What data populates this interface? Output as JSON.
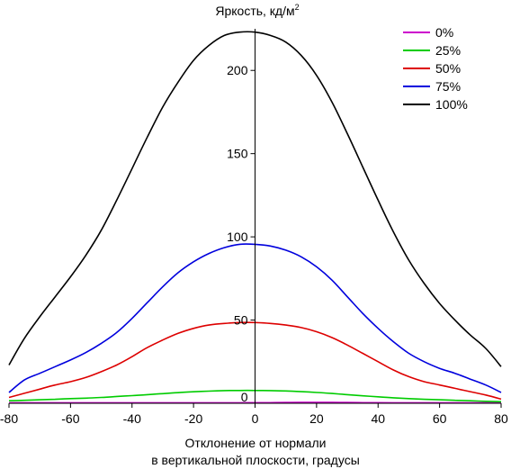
{
  "chart_data": {
    "type": "line",
    "ylabel": "Яркость, кд/м",
    "ylabel_sup": "2",
    "xlabel_line1": "Отклонение от нормали",
    "xlabel_line2": "в вертикальной плоскости, градусы",
    "xlim": [
      -80,
      80
    ],
    "ylim": [
      0,
      225
    ],
    "xticks": [
      -80,
      -60,
      -40,
      -20,
      0,
      20,
      40,
      60,
      80
    ],
    "yticks": [
      0,
      50,
      100,
      150,
      200
    ],
    "legend_position": "top-right",
    "grid": false,
    "x": [
      -80,
      -75,
      -70,
      -65,
      -60,
      -55,
      -50,
      -45,
      -40,
      -35,
      -30,
      -25,
      -20,
      -15,
      -10,
      -5,
      0,
      5,
      10,
      15,
      20,
      25,
      30,
      35,
      40,
      45,
      50,
      55,
      60,
      65,
      70,
      75,
      80
    ],
    "series": [
      {
        "name": "0%",
        "color": "#cc00cc",
        "values": [
          0.3,
          0.3,
          0.3,
          0.3,
          0.3,
          0.3,
          0.3,
          0.3,
          0.3,
          0.3,
          0.3,
          0.3,
          0.3,
          0.3,
          0.3,
          0.3,
          0.4,
          0.4,
          0.5,
          0.6,
          0.6,
          0.6,
          0.5,
          0.4,
          0.4,
          0.3,
          0.3,
          0.3,
          0.3,
          0.3,
          0.3,
          0.3,
          0.3
        ]
      },
      {
        "name": "25%",
        "color": "#00cc00",
        "values": [
          1.5,
          1.8,
          2.1,
          2.4,
          2.8,
          3.1,
          3.5,
          4.1,
          4.6,
          5.2,
          5.8,
          6.4,
          6.9,
          7.3,
          7.6,
          7.7,
          7.7,
          7.6,
          7.4,
          7.0,
          6.5,
          5.9,
          5.2,
          4.5,
          3.9,
          3.3,
          2.8,
          2.4,
          2.1,
          1.8,
          1.5,
          1.2,
          1.0
        ]
      },
      {
        "name": "50%",
        "color": "#dd0000",
        "values": [
          3.5,
          6.0,
          8.5,
          11.0,
          13.0,
          15.5,
          19.0,
          23.0,
          28.0,
          33.5,
          38.0,
          42.0,
          45.0,
          47.0,
          48.0,
          48.5,
          48.5,
          48.0,
          47.0,
          45.5,
          43.0,
          39.5,
          35.0,
          30.0,
          25.0,
          20.0,
          16.0,
          13.0,
          11.0,
          9.0,
          7.0,
          5.0,
          2.5
        ]
      },
      {
        "name": "75%",
        "color": "#0000dd",
        "values": [
          6.5,
          14.0,
          18.0,
          22.0,
          26.0,
          30.5,
          36.0,
          42.5,
          51.0,
          60.5,
          70.0,
          78.5,
          85.0,
          90.0,
          93.5,
          95.5,
          95.5,
          94.5,
          92.0,
          88.0,
          82.0,
          74.0,
          64.0,
          54.0,
          45.0,
          37.0,
          30.0,
          25.0,
          21.0,
          18.0,
          14.5,
          11.0,
          6.5
        ]
      },
      {
        "name": "100%",
        "color": "#000000",
        "values": [
          23.0,
          39.0,
          52.0,
          64.0,
          76.0,
          89.0,
          104.0,
          122.0,
          141.0,
          160.0,
          178.0,
          193.0,
          206.0,
          215.0,
          221.0,
          223.0,
          223.0,
          221.0,
          217.0,
          209.0,
          197.0,
          181.0,
          162.0,
          142.0,
          122.0,
          103.0,
          86.0,
          72.0,
          60.0,
          50.0,
          41.0,
          33.0,
          22.0
        ]
      }
    ]
  }
}
